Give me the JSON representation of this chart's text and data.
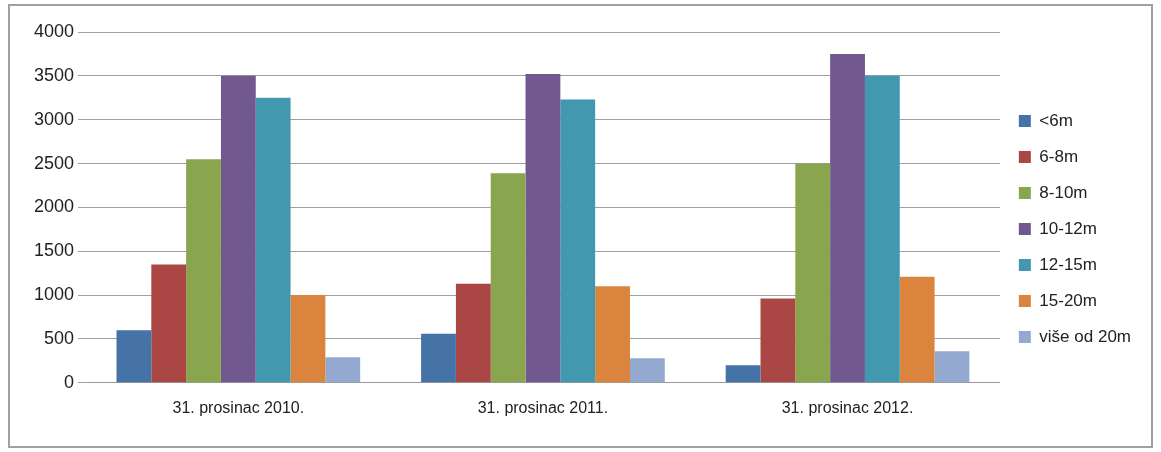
{
  "chart_data": {
    "type": "bar",
    "categories": [
      "31. prosinac 2010.",
      "31. prosinac 2011.",
      "31. prosinac 2012."
    ],
    "series": [
      {
        "name": "<6m",
        "color": "#4572a7",
        "values": [
          600,
          560,
          200
        ]
      },
      {
        "name": "6-8m",
        "color": "#aa4643",
        "values": [
          1350,
          1130,
          960
        ]
      },
      {
        "name": "8-10m",
        "color": "#89a54e",
        "values": [
          2550,
          2390,
          2500
        ]
      },
      {
        "name": "10-12m",
        "color": "#71588f",
        "values": [
          3500,
          3520,
          3750
        ]
      },
      {
        "name": "12-15m",
        "color": "#4198af",
        "values": [
          3250,
          3230,
          3500
        ]
      },
      {
        "name": "15-20m",
        "color": "#db843d",
        "values": [
          1000,
          1100,
          1210
        ]
      },
      {
        "name": "više od 20m",
        "color": "#93a9cf",
        "values": [
          290,
          280,
          360
        ]
      }
    ],
    "ylim": [
      0,
      4000
    ],
    "yticks": [
      0,
      500,
      1000,
      1500,
      2000,
      2500,
      3000,
      3500,
      4000
    ],
    "grid": "y",
    "legend": "right"
  }
}
